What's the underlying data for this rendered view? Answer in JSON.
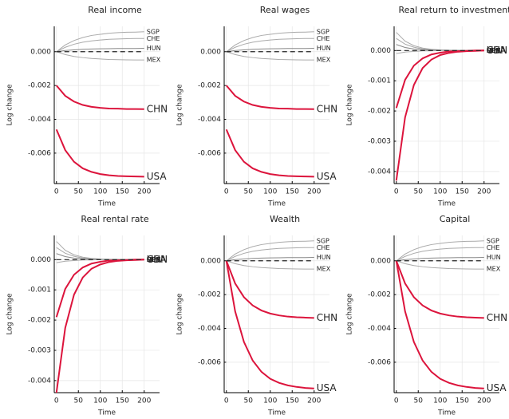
{
  "chart_data": [
    {
      "type": "line",
      "title": "Real income",
      "x_label": "Time",
      "y_label": "Log change",
      "x": [
        0,
        20,
        40,
        60,
        80,
        100,
        120,
        140,
        160,
        180,
        200
      ],
      "xlim": [
        -5,
        235
      ],
      "xticks": [
        0,
        50,
        100,
        150,
        200
      ],
      "ylim": [
        -0.0078,
        0.0015
      ],
      "yticks": [
        -0.006,
        -0.004,
        -0.002,
        {
          "value": 0,
          "label": "0.000"
        }
      ],
      "grid": true,
      "hline": 0,
      "series": [
        {
          "name": "SGP",
          "color": "#aaaaaa",
          "values": [
            0,
            0.0004,
            0.00066,
            0.00084,
            0.00096,
            0.00103,
            0.00109,
            0.00113,
            0.00115,
            0.00116,
            0.00118
          ]
        },
        {
          "name": "CHE",
          "color": "#aaaaaa",
          "values": [
            0,
            0.00026,
            0.00044,
            0.00056,
            0.00064,
            0.00069,
            0.00073,
            0.00075,
            0.00077,
            0.00078,
            0.00078
          ]
        },
        {
          "name": "HUN",
          "color": "#888888",
          "values": [
            0,
            7e-05,
            0.00011,
            0.00014,
            0.00016,
            0.00017,
            0.00018,
            0.00019,
            0.00019,
            0.00019,
            0.0002
          ]
        },
        {
          "name": "MEX",
          "color": "#aaaaaa",
          "values": [
            0,
            -0.00017,
            -0.00028,
            -0.00035,
            -0.0004,
            -0.00043,
            -0.00046,
            -0.00047,
            -0.00048,
            -0.00049,
            -0.00049
          ]
        },
        {
          "name": "CHN",
          "color": "#dc143c",
          "values": [
            -0.002,
            -0.00261,
            -0.00295,
            -0.00315,
            -0.00326,
            -0.00332,
            -0.00336,
            -0.00337,
            -0.00339,
            -0.00339,
            -0.0034
          ]
        },
        {
          "name": "USA",
          "color": "#dc143c",
          "values": [
            -0.0046,
            -0.00582,
            -0.00651,
            -0.0069,
            -0.00711,
            -0.00724,
            -0.00731,
            -0.00735,
            -0.00737,
            -0.00738,
            -0.00739
          ]
        }
      ]
    },
    {
      "type": "line",
      "title": "Real wages",
      "x_label": "Time",
      "y_label": "Log change",
      "x": [
        0,
        20,
        40,
        60,
        80,
        100,
        120,
        140,
        160,
        180,
        200
      ],
      "xlim": [
        -5,
        235
      ],
      "xticks": [
        0,
        50,
        100,
        150,
        200
      ],
      "ylim": [
        -0.0078,
        0.0015
      ],
      "yticks": [
        -0.006,
        -0.004,
        -0.002,
        {
          "value": 0,
          "label": "0.000"
        }
      ],
      "grid": true,
      "hline": 0,
      "series": [
        {
          "name": "SGP",
          "color": "#aaaaaa",
          "values": [
            0,
            0.0004,
            0.00066,
            0.00084,
            0.00096,
            0.00103,
            0.00109,
            0.00113,
            0.00115,
            0.00116,
            0.00118
          ]
        },
        {
          "name": "CHE",
          "color": "#aaaaaa",
          "values": [
            0,
            0.00026,
            0.00044,
            0.00056,
            0.00064,
            0.00069,
            0.00073,
            0.00075,
            0.00077,
            0.00078,
            0.00078
          ]
        },
        {
          "name": "HUN",
          "color": "#888888",
          "values": [
            0,
            7e-05,
            0.00011,
            0.00014,
            0.00016,
            0.00017,
            0.00018,
            0.00019,
            0.00019,
            0.00019,
            0.0002
          ]
        },
        {
          "name": "MEX",
          "color": "#aaaaaa",
          "values": [
            0,
            -0.00017,
            -0.00028,
            -0.00035,
            -0.0004,
            -0.00043,
            -0.00046,
            -0.00047,
            -0.00048,
            -0.00049,
            -0.00049
          ]
        },
        {
          "name": "CHN",
          "color": "#dc143c",
          "values": [
            -0.002,
            -0.00261,
            -0.00295,
            -0.00315,
            -0.00326,
            -0.00332,
            -0.00336,
            -0.00337,
            -0.00339,
            -0.00339,
            -0.0034
          ]
        },
        {
          "name": "USA",
          "color": "#dc143c",
          "values": [
            -0.0046,
            -0.00582,
            -0.00651,
            -0.0069,
            -0.00711,
            -0.00724,
            -0.00731,
            -0.00735,
            -0.00737,
            -0.00738,
            -0.00739
          ]
        }
      ]
    },
    {
      "type": "line",
      "title": "Real return to investment",
      "x_label": "Time",
      "y_label": "Log change",
      "x": [
        0,
        20,
        40,
        60,
        80,
        100,
        120,
        140,
        160,
        180,
        200
      ],
      "xlim": [
        -5,
        235
      ],
      "xticks": [
        0,
        50,
        100,
        150,
        200
      ],
      "ylim": [
        -0.0044,
        0.0008
      ],
      "yticks": [
        -0.004,
        -0.003,
        -0.002,
        -0.001,
        {
          "value": 0,
          "label": "0.000"
        }
      ],
      "grid": true,
      "hline": 0,
      "series": [
        {
          "name": "SGP",
          "color": "#aaaaaa",
          "values": [
            0.0006,
            0.00031,
            0.00016,
            8e-05,
            4e-05,
            2e-05,
            1e-05,
            1e-05,
            0,
            0,
            0
          ]
        },
        {
          "name": "CHE",
          "color": "#aaaaaa",
          "values": [
            0.0004,
            0.00021,
            0.00011,
            5e-05,
            3e-05,
            1e-05,
            1e-05,
            0,
            0,
            0,
            0
          ]
        },
        {
          "name": "HUN",
          "color": "#888888",
          "values": [
            0.0002,
            0.0001,
            5e-05,
            3e-05,
            1e-05,
            1e-05,
            0,
            0,
            0,
            0,
            0
          ]
        },
        {
          "name": "MEX",
          "color": "#aaaaaa",
          "values": [
            -0.0001,
            -5e-05,
            -3e-05,
            -1e-05,
            -1e-05,
            0,
            0,
            0,
            0,
            0,
            0
          ]
        },
        {
          "name": "CHN",
          "color": "#dc143c",
          "values": [
            -0.0019,
            -0.00097,
            -0.0005,
            -0.00026,
            -0.00013,
            -7e-05,
            -3e-05,
            -2e-05,
            -1e-05,
            0,
            0
          ]
        },
        {
          "name": "USA",
          "color": "#dc143c",
          "values": [
            -0.0043,
            -0.00221,
            -0.00114,
            -0.00058,
            -0.0003,
            -0.00015,
            -8e-05,
            -4e-05,
            -2e-05,
            -1e-05,
            0
          ]
        }
      ]
    },
    {
      "type": "line",
      "title": "Real rental rate",
      "x_label": "Time",
      "y_label": "Log change",
      "x": [
        0,
        20,
        40,
        60,
        80,
        100,
        120,
        140,
        160,
        180,
        200
      ],
      "xlim": [
        -5,
        235
      ],
      "xticks": [
        0,
        50,
        100,
        150,
        200
      ],
      "ylim": [
        -0.0044,
        0.0008
      ],
      "yticks": [
        -0.004,
        -0.003,
        -0.002,
        -0.001,
        {
          "value": 0,
          "label": "0.000"
        }
      ],
      "grid": true,
      "hline": 0,
      "series": [
        {
          "name": "SGP",
          "color": "#aaaaaa",
          "values": [
            0.0006,
            0.00031,
            0.00016,
            8e-05,
            4e-05,
            2e-05,
            1e-05,
            1e-05,
            0,
            0,
            0
          ]
        },
        {
          "name": "CHE",
          "color": "#aaaaaa",
          "values": [
            0.0004,
            0.00021,
            0.00011,
            5e-05,
            3e-05,
            1e-05,
            1e-05,
            0,
            0,
            0,
            0
          ]
        },
        {
          "name": "HUN",
          "color": "#888888",
          "values": [
            0.0002,
            0.0001,
            5e-05,
            3e-05,
            1e-05,
            1e-05,
            0,
            0,
            0,
            0,
            0
          ]
        },
        {
          "name": "MEX",
          "color": "#aaaaaa",
          "values": [
            -0.0001,
            -5e-05,
            -3e-05,
            -1e-05,
            -1e-05,
            0,
            0,
            0,
            0,
            0,
            0
          ]
        },
        {
          "name": "CHN",
          "color": "#dc143c",
          "values": [
            -0.0019,
            -0.00097,
            -0.0005,
            -0.00026,
            -0.00013,
            -7e-05,
            -3e-05,
            -2e-05,
            -1e-05,
            0,
            0
          ]
        },
        {
          "name": "USA",
          "color": "#dc143c",
          "values": [
            -0.0044,
            -0.00226,
            -0.00116,
            -0.00059,
            -0.0003,
            -0.00016,
            -8e-05,
            -4e-05,
            -2e-05,
            -1e-05,
            0
          ]
        }
      ]
    },
    {
      "type": "line",
      "title": "Wealth",
      "x_label": "Time",
      "y_label": "Log change",
      "x": [
        0,
        20,
        40,
        60,
        80,
        100,
        120,
        140,
        160,
        180,
        200
      ],
      "xlim": [
        -5,
        235
      ],
      "xticks": [
        0,
        50,
        100,
        150,
        200
      ],
      "ylim": [
        -0.0078,
        0.0015
      ],
      "yticks": [
        -0.006,
        -0.004,
        -0.002,
        {
          "value": 0,
          "label": "0.000"
        }
      ],
      "grid": true,
      "hline": 0,
      "series": [
        {
          "name": "SGP",
          "color": "#aaaaaa",
          "values": [
            0,
            0.0004,
            0.00066,
            0.00084,
            0.00096,
            0.00103,
            0.00109,
            0.00113,
            0.00115,
            0.00116,
            0.00118
          ]
        },
        {
          "name": "CHE",
          "color": "#aaaaaa",
          "values": [
            0,
            0.00026,
            0.00044,
            0.00056,
            0.00064,
            0.00069,
            0.00073,
            0.00075,
            0.00077,
            0.00078,
            0.00078
          ]
        },
        {
          "name": "HUN",
          "color": "#888888",
          "values": [
            0,
            7e-05,
            0.00011,
            0.00014,
            0.00016,
            0.00017,
            0.00018,
            0.00019,
            0.00019,
            0.00019,
            0.0002
          ]
        },
        {
          "name": "MEX",
          "color": "#aaaaaa",
          "values": [
            0,
            -0.00017,
            -0.00028,
            -0.00035,
            -0.0004,
            -0.00043,
            -0.00046,
            -0.00047,
            -0.00048,
            -0.00049,
            -0.00049
          ]
        },
        {
          "name": "CHN",
          "color": "#dc143c",
          "values": [
            0,
            -0.00134,
            -0.00215,
            -0.00264,
            -0.00294,
            -0.00312,
            -0.00323,
            -0.0033,
            -0.00334,
            -0.00336,
            -0.00338
          ]
        },
        {
          "name": "USA",
          "color": "#dc143c",
          "values": [
            0,
            -0.00299,
            -0.0048,
            -0.0059,
            -0.00657,
            -0.00698,
            -0.00722,
            -0.00737,
            -0.00746,
            -0.00752,
            -0.00755
          ]
        }
      ]
    },
    {
      "type": "line",
      "title": "Capital",
      "x_label": "Time",
      "y_label": "Log change",
      "x": [
        0,
        20,
        40,
        60,
        80,
        100,
        120,
        140,
        160,
        180,
        200
      ],
      "xlim": [
        -5,
        235
      ],
      "xticks": [
        0,
        50,
        100,
        150,
        200
      ],
      "ylim": [
        -0.0078,
        0.0015
      ],
      "yticks": [
        -0.006,
        -0.004,
        -0.002,
        {
          "value": 0,
          "label": "0.000"
        }
      ],
      "grid": true,
      "hline": 0,
      "series": [
        {
          "name": "SGP",
          "color": "#aaaaaa",
          "values": [
            0,
            0.0004,
            0.00066,
            0.00084,
            0.00096,
            0.00103,
            0.00109,
            0.00113,
            0.00115,
            0.00116,
            0.00118
          ]
        },
        {
          "name": "CHE",
          "color": "#aaaaaa",
          "values": [
            0,
            0.00026,
            0.00044,
            0.00056,
            0.00064,
            0.00069,
            0.00073,
            0.00075,
            0.00077,
            0.00078,
            0.00078
          ]
        },
        {
          "name": "HUN",
          "color": "#888888",
          "values": [
            0,
            7e-05,
            0.00011,
            0.00014,
            0.00016,
            0.00017,
            0.00018,
            0.00019,
            0.00019,
            0.00019,
            0.0002
          ]
        },
        {
          "name": "MEX",
          "color": "#aaaaaa",
          "values": [
            0,
            -0.00017,
            -0.00028,
            -0.00035,
            -0.0004,
            -0.00043,
            -0.00046,
            -0.00047,
            -0.00048,
            -0.00049,
            -0.00049
          ]
        },
        {
          "name": "CHN",
          "color": "#dc143c",
          "values": [
            0,
            -0.00134,
            -0.00215,
            -0.00264,
            -0.00294,
            -0.00312,
            -0.00323,
            -0.0033,
            -0.00334,
            -0.00336,
            -0.00338
          ]
        },
        {
          "name": "USA",
          "color": "#dc143c",
          "values": [
            0,
            -0.00299,
            -0.0048,
            -0.0059,
            -0.00657,
            -0.00698,
            -0.00722,
            -0.00737,
            -0.00746,
            -0.00752,
            -0.00755
          ]
        }
      ]
    }
  ]
}
